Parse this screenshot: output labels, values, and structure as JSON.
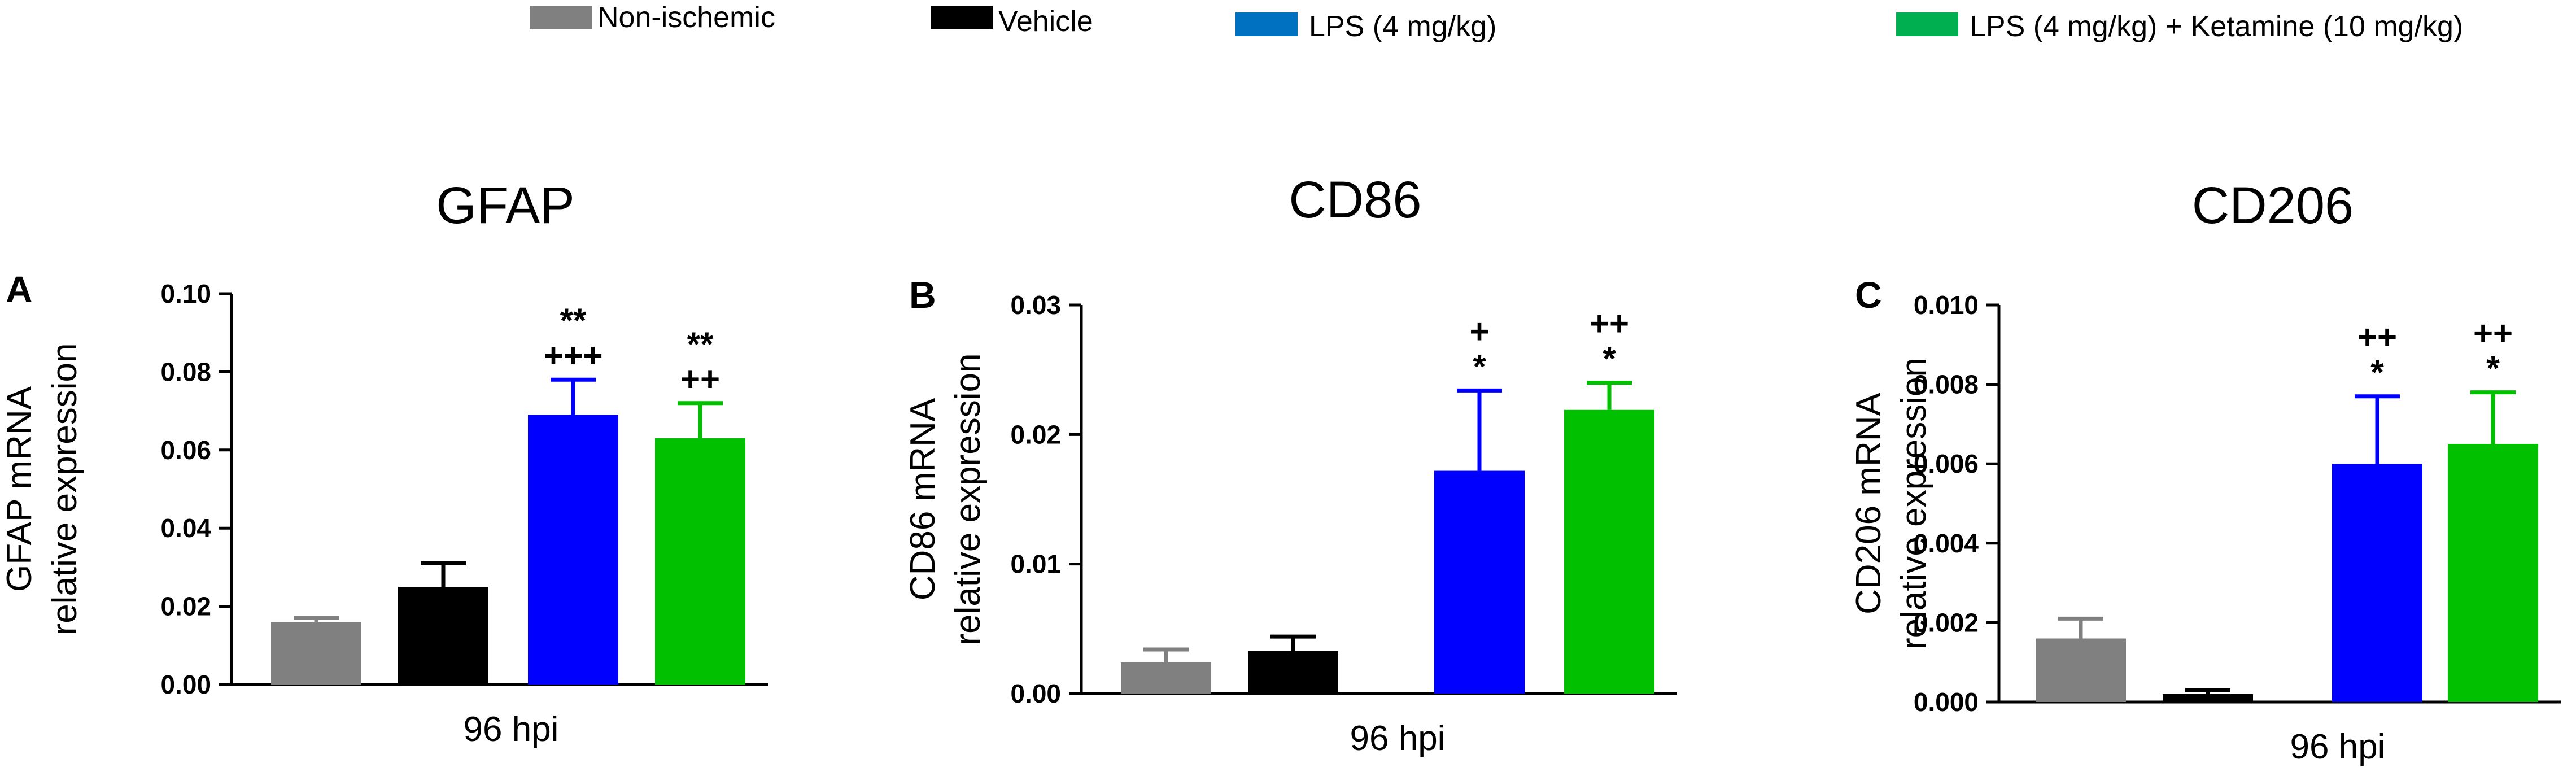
{
  "legend": {
    "items": [
      {
        "label": "Non-ischemic",
        "color": "#808080"
      },
      {
        "label": "Vehicle",
        "color": "#000000"
      },
      {
        "label": "LPS (4 mg/kg)",
        "color": "#0070c0"
      },
      {
        "label": "LPS (4 mg/kg) + Ketamine (10 mg/kg)",
        "color": "#00b050"
      }
    ]
  },
  "chart_data": [
    {
      "type": "bar",
      "panel_letter": "A",
      "title": "GFAP",
      "ylabel_line1": "GFAP mRNA",
      "ylabel_line2": "relative expression",
      "xlabel": "96 hpi",
      "ylim": [
        0,
        0.1
      ],
      "yticks": [
        "0.00",
        "0.02",
        "0.04",
        "0.06",
        "0.08",
        "0.10"
      ],
      "categories": [
        "Non-ischemic",
        "Vehicle",
        "LPS (4 mg/kg)",
        "LPS (4 mg/kg) + Ketamine (10 mg/kg)"
      ],
      "values": [
        0.016,
        0.025,
        0.069,
        0.063
      ],
      "errors": [
        0.001,
        0.006,
        0.009,
        0.009
      ],
      "colors": [
        "#808080",
        "#000000",
        "#0000ff",
        "#00c000"
      ],
      "significance": [
        [],
        [],
        [
          "**",
          "+++"
        ],
        [
          "**",
          "++"
        ]
      ]
    },
    {
      "type": "bar",
      "panel_letter": "B",
      "title": "CD86",
      "ylabel_line1": "CD86 mRNA",
      "ylabel_line2": "relative expression",
      "xlabel": "96 hpi",
      "ylim": [
        0,
        0.03
      ],
      "yticks": [
        "0.00",
        "0.01",
        "0.02",
        "0.03"
      ],
      "categories": [
        "Non-ischemic",
        "Vehicle",
        "LPS (4 mg/kg)",
        "LPS (4 mg/kg) + Ketamine (10 mg/kg)"
      ],
      "values": [
        0.0024,
        0.0033,
        0.0172,
        0.0219
      ],
      "errors": [
        0.001,
        0.0011,
        0.0062,
        0.0021
      ],
      "colors": [
        "#808080",
        "#000000",
        "#0000ff",
        "#00c000"
      ],
      "significance": [
        [],
        [],
        [
          "+",
          "*"
        ],
        [
          "++",
          "*"
        ]
      ]
    },
    {
      "type": "bar",
      "panel_letter": "C",
      "title": "CD206",
      "ylabel_line1": "CD206 mRNA",
      "ylabel_line2": "relative expression",
      "xlabel": "96 hpi",
      "ylim": [
        0,
        0.01
      ],
      "yticks": [
        "0.000",
        "0.002",
        "0.004",
        "0.006",
        "0.008",
        "0.010"
      ],
      "categories": [
        "Non-ischemic",
        "Vehicle",
        "LPS (4 mg/kg)",
        "LPS (4 mg/kg) + Ketamine (10 mg/kg)"
      ],
      "values": [
        0.0016,
        0.0002,
        0.006,
        0.0065
      ],
      "errors": [
        0.0005,
        0.0001,
        0.0017,
        0.0013
      ],
      "colors": [
        "#808080",
        "#000000",
        "#0000ff",
        "#00c000"
      ],
      "significance": [
        [],
        [],
        [
          "++",
          "*"
        ],
        [
          "++",
          "*"
        ]
      ]
    }
  ]
}
